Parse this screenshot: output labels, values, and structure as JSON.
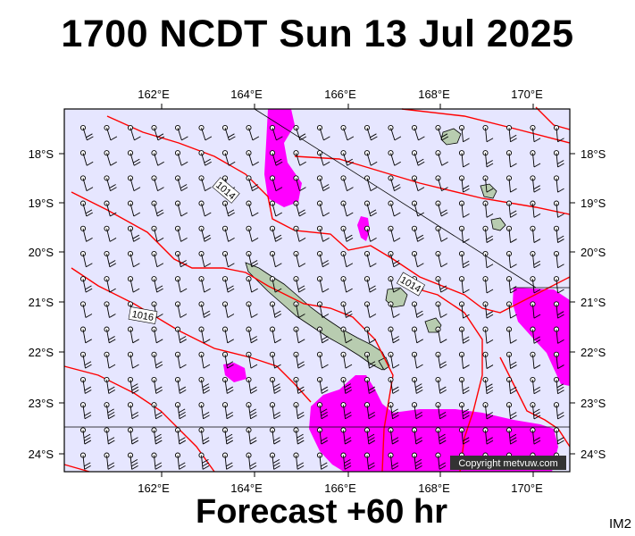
{
  "title": "1700 NCDT Sun 13 Jul 2025",
  "footer": "Forecast +60 hr",
  "corner_label": "IM2",
  "copyright": "Copyright metvuw.com",
  "map": {
    "longitude_labels": [
      "162°E",
      "164°E",
      "166°E",
      "168°E",
      "170°E"
    ],
    "latitude_labels": [
      "18°S",
      "19°S",
      "20°S",
      "21°S",
      "22°S",
      "23°S",
      "24°S"
    ],
    "isobar_labels": [
      "1014",
      "1014",
      "1016"
    ],
    "colors": {
      "ocean": "#e6e6ff",
      "rain": "#ff00ff",
      "isobar": "#ff0000",
      "land": "#b8ccb0",
      "wind_barb": "#000000"
    }
  }
}
